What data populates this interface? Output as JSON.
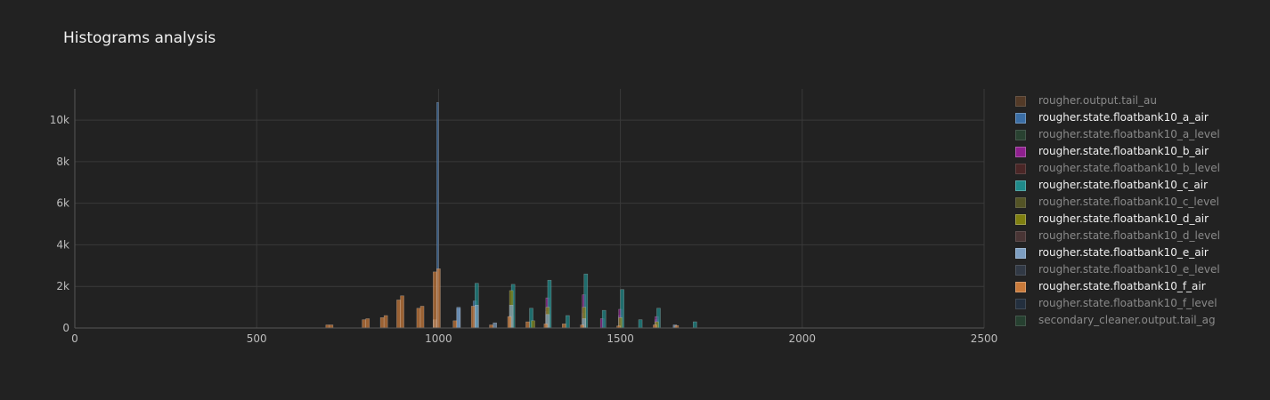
{
  "chart_data": {
    "type": "bar",
    "title": "Histograms analysis",
    "xlabel": "",
    "ylabel": "",
    "xlim": [
      0,
      2500
    ],
    "ylim": [
      0,
      11500
    ],
    "x_ticks": [
      0,
      500,
      1000,
      1500,
      2000,
      2500
    ],
    "x_tick_labels": [
      "0",
      "500",
      "1000",
      "1500",
      "2000",
      "2500"
    ],
    "y_ticks": [
      0,
      2000,
      4000,
      6000,
      8000,
      10000
    ],
    "y_tick_labels": [
      "0",
      "2k",
      "4k",
      "6k",
      "8k",
      "10k"
    ],
    "grid": true,
    "barmode": "overlay",
    "legend_position": "right",
    "series": [
      {
        "name": "rougher.output.tail_au",
        "color": "#7b4f2c",
        "highlight": false,
        "bins": []
      },
      {
        "name": "rougher.state.floatbank10_a_air",
        "color": "#3b6ea5",
        "highlight": true,
        "bins": [
          [
            995,
            1000,
            10850
          ],
          [
            1050,
            1060,
            1000
          ],
          [
            1095,
            1105,
            1300
          ],
          [
            1195,
            1205,
            600
          ],
          [
            1295,
            1305,
            800
          ],
          [
            1395,
            1405,
            700
          ],
          [
            1495,
            1505,
            600
          ],
          [
            1595,
            1605,
            400
          ]
        ]
      },
      {
        "name": "rougher.state.floatbank10_a_level",
        "color": "#2f5d3f",
        "highlight": false,
        "bins": []
      },
      {
        "name": "rougher.state.floatbank10_b_air",
        "color": "#8e1f8e",
        "highlight": true,
        "bins": [
          [
            1295,
            1305,
            1450
          ],
          [
            1395,
            1405,
            1600
          ],
          [
            1495,
            1505,
            900
          ],
          [
            1445,
            1455,
            450
          ],
          [
            1595,
            1605,
            550
          ]
        ]
      },
      {
        "name": "rougher.state.floatbank10_b_level",
        "color": "#6b2a2a",
        "highlight": false,
        "bins": []
      },
      {
        "name": "rougher.state.floatbank10_c_air",
        "color": "#1f8a8a",
        "highlight": true,
        "bins": [
          [
            1100,
            1110,
            2150
          ],
          [
            1200,
            1210,
            2100
          ],
          [
            1250,
            1260,
            950
          ],
          [
            1300,
            1310,
            2300
          ],
          [
            1350,
            1360,
            600
          ],
          [
            1400,
            1410,
            2600
          ],
          [
            1450,
            1460,
            850
          ],
          [
            1500,
            1510,
            1850
          ],
          [
            1550,
            1560,
            400
          ],
          [
            1600,
            1610,
            950
          ],
          [
            1700,
            1710,
            300
          ]
        ]
      },
      {
        "name": "rougher.state.floatbank10_c_level",
        "color": "#7d7d2a",
        "highlight": false,
        "bins": []
      },
      {
        "name": "rougher.state.floatbank10_d_air",
        "color": "#7f7f10",
        "highlight": true,
        "bins": [
          [
            1195,
            1205,
            1800
          ],
          [
            1295,
            1305,
            1000
          ],
          [
            1395,
            1405,
            1000
          ],
          [
            1495,
            1505,
            500
          ],
          [
            1255,
            1265,
            350
          ],
          [
            1595,
            1605,
            300
          ]
        ]
      },
      {
        "name": "rougher.state.floatbank10_d_level",
        "color": "#6a4545",
        "highlight": false,
        "bins": []
      },
      {
        "name": "rougher.state.floatbank10_e_air",
        "color": "#7d9ec1",
        "highlight": true,
        "bins": [
          [
            985,
            995,
            400
          ],
          [
            1050,
            1060,
            950
          ],
          [
            1100,
            1110,
            1100
          ],
          [
            1150,
            1160,
            250
          ],
          [
            1195,
            1205,
            1100
          ],
          [
            1295,
            1305,
            650
          ],
          [
            1395,
            1405,
            450
          ],
          [
            1645,
            1655,
            150
          ]
        ]
      },
      {
        "name": "rougher.state.floatbank10_e_level",
        "color": "#3e4d63",
        "highlight": false,
        "bins": []
      },
      {
        "name": "rougher.state.floatbank10_f_air",
        "color": "#c97a3a",
        "highlight": true,
        "bins": [
          [
            690,
            700,
            150
          ],
          [
            700,
            710,
            150
          ],
          [
            790,
            800,
            400
          ],
          [
            800,
            810,
            450
          ],
          [
            840,
            850,
            500
          ],
          [
            850,
            860,
            600
          ],
          [
            885,
            895,
            1350
          ],
          [
            895,
            905,
            1550
          ],
          [
            940,
            950,
            950
          ],
          [
            950,
            960,
            1050
          ],
          [
            985,
            995,
            2700
          ],
          [
            995,
            1005,
            2850
          ],
          [
            1040,
            1050,
            350
          ],
          [
            1090,
            1100,
            1050
          ],
          [
            1140,
            1150,
            150
          ],
          [
            1190,
            1200,
            550
          ],
          [
            1240,
            1250,
            300
          ],
          [
            1290,
            1300,
            200
          ],
          [
            1340,
            1350,
            200
          ],
          [
            1390,
            1400,
            150
          ],
          [
            1490,
            1500,
            100
          ],
          [
            1590,
            1600,
            150
          ],
          [
            1650,
            1660,
            120
          ]
        ]
      },
      {
        "name": "rougher.state.floatbank10_f_level",
        "color": "#243a55",
        "highlight": false,
        "bins": []
      },
      {
        "name": "secondary_cleaner.output.tail_ag",
        "color": "#2b5a3c",
        "highlight": false,
        "bins": []
      }
    ]
  }
}
